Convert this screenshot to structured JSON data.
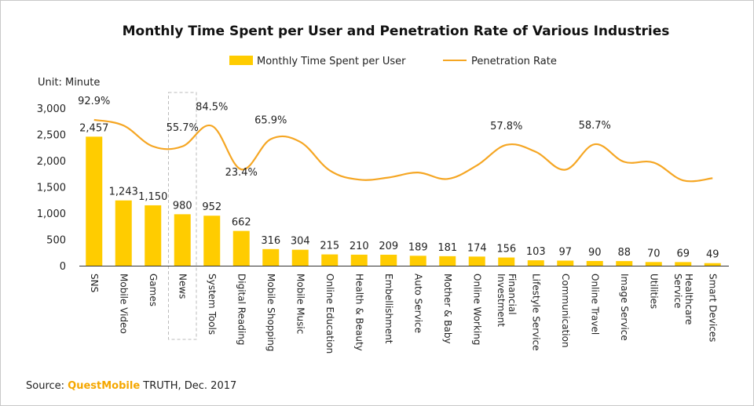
{
  "chart_data": {
    "type": "bar+line",
    "title": "Monthly Time Spent per User and Penetration Rate of Various Industries",
    "unit_label": "Unit: Minute",
    "legend": {
      "bar": "Monthly Time Spent per User",
      "line": "Penetration Rate",
      "placement": "top-center"
    },
    "colors": {
      "bar": "#ffcc00",
      "line": "#f5a623",
      "highlight_box": "#bbbbbb"
    },
    "ylim": [
      0,
      3000
    ],
    "yticks": [
      "0",
      "500",
      "1,000",
      "1,500",
      "2,000",
      "2,500",
      "3,000"
    ],
    "highlighted_category": "News",
    "categories": [
      {
        "label": "SNS",
        "value": 2457,
        "value_label": "2,457",
        "rate": 92.9,
        "rate_label": "92.9%"
      },
      {
        "label": "Mobile Video",
        "value": 1243,
        "value_label": "1,243",
        "rate": 85.0,
        "rate_label": ""
      },
      {
        "label": "Games",
        "value": 1150,
        "value_label": "1,150",
        "rate": 55.7,
        "rate_label": ""
      },
      {
        "label": "News",
        "value": 980,
        "value_label": "980",
        "rate": 55.7,
        "rate_label": "55.7%"
      },
      {
        "label": "System Tools",
        "value": 952,
        "value_label": "952",
        "rate": 84.5,
        "rate_label": "84.5%"
      },
      {
        "label": "Digital Reading",
        "value": 662,
        "value_label": "662",
        "rate": 23.4,
        "rate_label": "23.4%"
      },
      {
        "label": "Mobile Shopping",
        "value": 316,
        "value_label": "316",
        "rate": 65.9,
        "rate_label": "65.9%"
      },
      {
        "label": "Mobile Music",
        "value": 304,
        "value_label": "304",
        "rate": 62.0,
        "rate_label": ""
      },
      {
        "label": "Online Education",
        "value": 215,
        "value_label": "215",
        "rate": 22.0,
        "rate_label": ""
      },
      {
        "label": "Health & Beauty",
        "value": 210,
        "value_label": "210",
        "rate": 9.0,
        "rate_label": ""
      },
      {
        "label": "Embellishment",
        "value": 209,
        "value_label": "209",
        "rate": 12.0,
        "rate_label": ""
      },
      {
        "label": "Auto Service",
        "value": 189,
        "value_label": "189",
        "rate": 19.0,
        "rate_label": ""
      },
      {
        "label": "Mother & Baby",
        "value": 181,
        "value_label": "181",
        "rate": 10.0,
        "rate_label": ""
      },
      {
        "label": "Online Working",
        "value": 174,
        "value_label": "174",
        "rate": 29.0,
        "rate_label": ""
      },
      {
        "label": "Financial Investment",
        "value": 156,
        "value_label": "156",
        "rate": 57.8,
        "rate_label": "57.8%"
      },
      {
        "label": "Lifestyle Service",
        "value": 103,
        "value_label": "103",
        "rate": 48.0,
        "rate_label": ""
      },
      {
        "label": "Communication",
        "value": 97,
        "value_label": "97",
        "rate": 23.0,
        "rate_label": ""
      },
      {
        "label": "Online Travel",
        "value": 90,
        "value_label": "90",
        "rate": 58.7,
        "rate_label": "58.7%"
      },
      {
        "label": "Image Service",
        "value": 88,
        "value_label": "88",
        "rate": 34.0,
        "rate_label": ""
      },
      {
        "label": "Utilities",
        "value": 70,
        "value_label": "70",
        "rate": 33.0,
        "rate_label": ""
      },
      {
        "label": "Healthcare Service",
        "value": 69,
        "value_label": "69",
        "rate": 8.0,
        "rate_label": ""
      },
      {
        "label": "Smart Devices",
        "value": 49,
        "value_label": "49",
        "rate": 11.0,
        "rate_label": ""
      }
    ]
  },
  "source": {
    "prefix": "Source: ",
    "brand": "QuestMobile",
    "suffix": " TRUTH, Dec. 2017"
  }
}
